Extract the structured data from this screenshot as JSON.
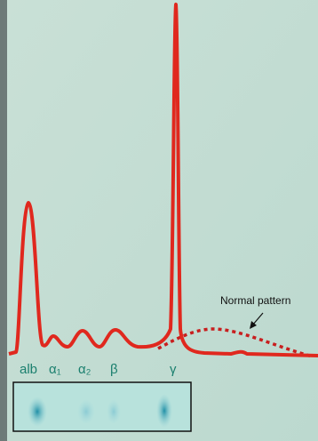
{
  "annotation": "Normal pattern",
  "fractions": [
    "alb",
    "α₁",
    "α₂",
    "β",
    "γ"
  ]
}
